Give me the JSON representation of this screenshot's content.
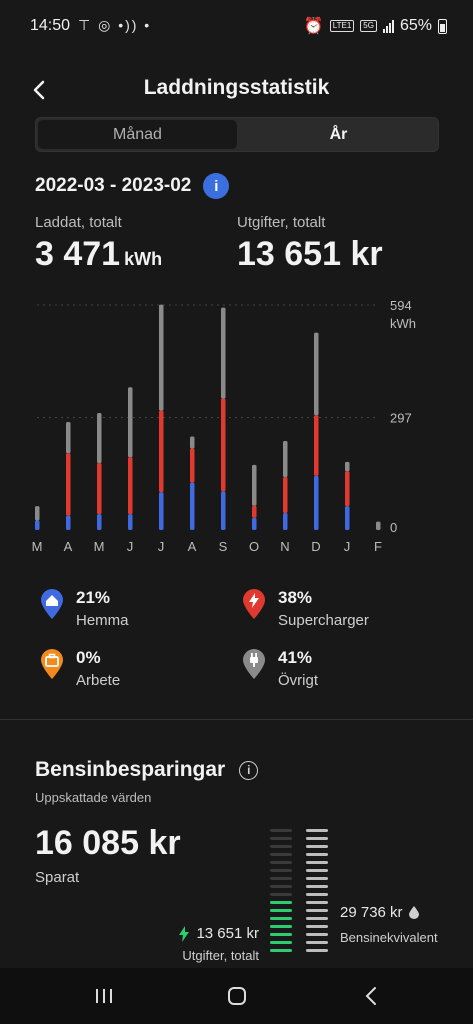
{
  "status_bar": {
    "time": "14:50",
    "left_icons": "⊤ ◎ •)) •",
    "network": "LTE1",
    "network_5g": "5G",
    "battery": "65%"
  },
  "header": {
    "title": "Laddningsstatistik"
  },
  "segments": {
    "month": "Månad",
    "year": "År"
  },
  "range": {
    "text": "2022-03 - 2023-02",
    "info": "i"
  },
  "kpis": {
    "charged_label": "Laddat, totalt",
    "charged_value": "3 471",
    "charged_unit": "kWh",
    "cost_label": "Utgifter, totalt",
    "cost_value": "13 651 kr"
  },
  "colors": {
    "home": "#3f6ae0",
    "supercharger": "#e0392f",
    "work": "#f28a1e",
    "other": "#8a8a8a",
    "accent": "#3b6fe0",
    "green": "#2ecc71"
  },
  "chart_data": {
    "type": "bar",
    "stacked": true,
    "categories": [
      "M",
      "A",
      "M",
      "J",
      "J",
      "A",
      "S",
      "O",
      "N",
      "D",
      "J",
      "F"
    ],
    "series": [
      {
        "name": "Hemma",
        "values": [
          25,
          38,
          42,
          42,
          100,
          125,
          102,
          32,
          45,
          143,
          63,
          0
        ]
      },
      {
        "name": "Supercharger",
        "values": [
          0,
          165,
          135,
          150,
          215,
          90,
          245,
          32,
          95,
          160,
          92,
          0
        ]
      },
      {
        "name": "Arbete",
        "values": [
          0,
          0,
          0,
          0,
          0,
          0,
          0,
          0,
          0,
          0,
          0,
          0
        ]
      },
      {
        "name": "Övrigt",
        "values": [
          38,
          82,
          132,
          185,
          280,
          32,
          240,
          108,
          95,
          218,
          25,
          22
        ]
      }
    ],
    "y_ticks": [
      "594",
      "297",
      "0"
    ],
    "y_unit": "kWh",
    "ylim": [
      0,
      594
    ],
    "grid": true
  },
  "legend": [
    {
      "pct": "21%",
      "name": "Hemma",
      "icon": "home-icon"
    },
    {
      "pct": "38%",
      "name": "Supercharger",
      "icon": "bolt-icon"
    },
    {
      "pct": "0%",
      "name": "Arbete",
      "icon": "briefcase-icon"
    },
    {
      "pct": "41%",
      "name": "Övrigt",
      "icon": "plug-icon"
    }
  ],
  "savings": {
    "title": "Bensinbesparingar",
    "subtitle": "Uppskattade värden",
    "saved_value": "16 085 kr",
    "saved_label": "Sparat",
    "cost_value": "13 651 kr",
    "cost_label": "Utgifter, totalt",
    "gas_value": "29 736 kr",
    "gas_label": "Bensinekvivalent"
  }
}
